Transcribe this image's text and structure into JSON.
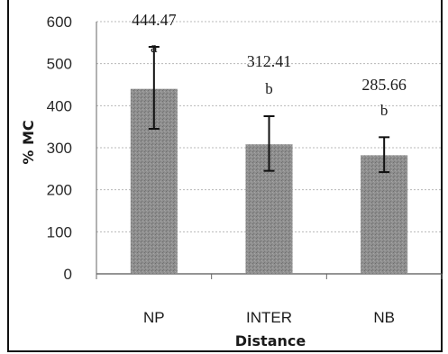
{
  "chart_data": {
    "type": "bar",
    "categories": [
      "NP",
      "INTER",
      "NB"
    ],
    "values": [
      444.47,
      312.41,
      285.66
    ],
    "bar_heights": [
      440,
      308,
      282
    ],
    "error_high": [
      540,
      375,
      325
    ],
    "error_low": [
      345,
      245,
      242
    ],
    "data_labels": [
      "444.47",
      "312.41",
      "285.66"
    ],
    "significance_letters": [
      "a",
      "b",
      "b"
    ],
    "xlabel": "Distance",
    "ylabel": "% MC",
    "ylim": [
      0,
      600
    ],
    "yticks": [
      "0",
      "100",
      "200",
      "300",
      "400",
      "500",
      "600"
    ],
    "grid": true,
    "bar_color": "#8d8d8d"
  }
}
